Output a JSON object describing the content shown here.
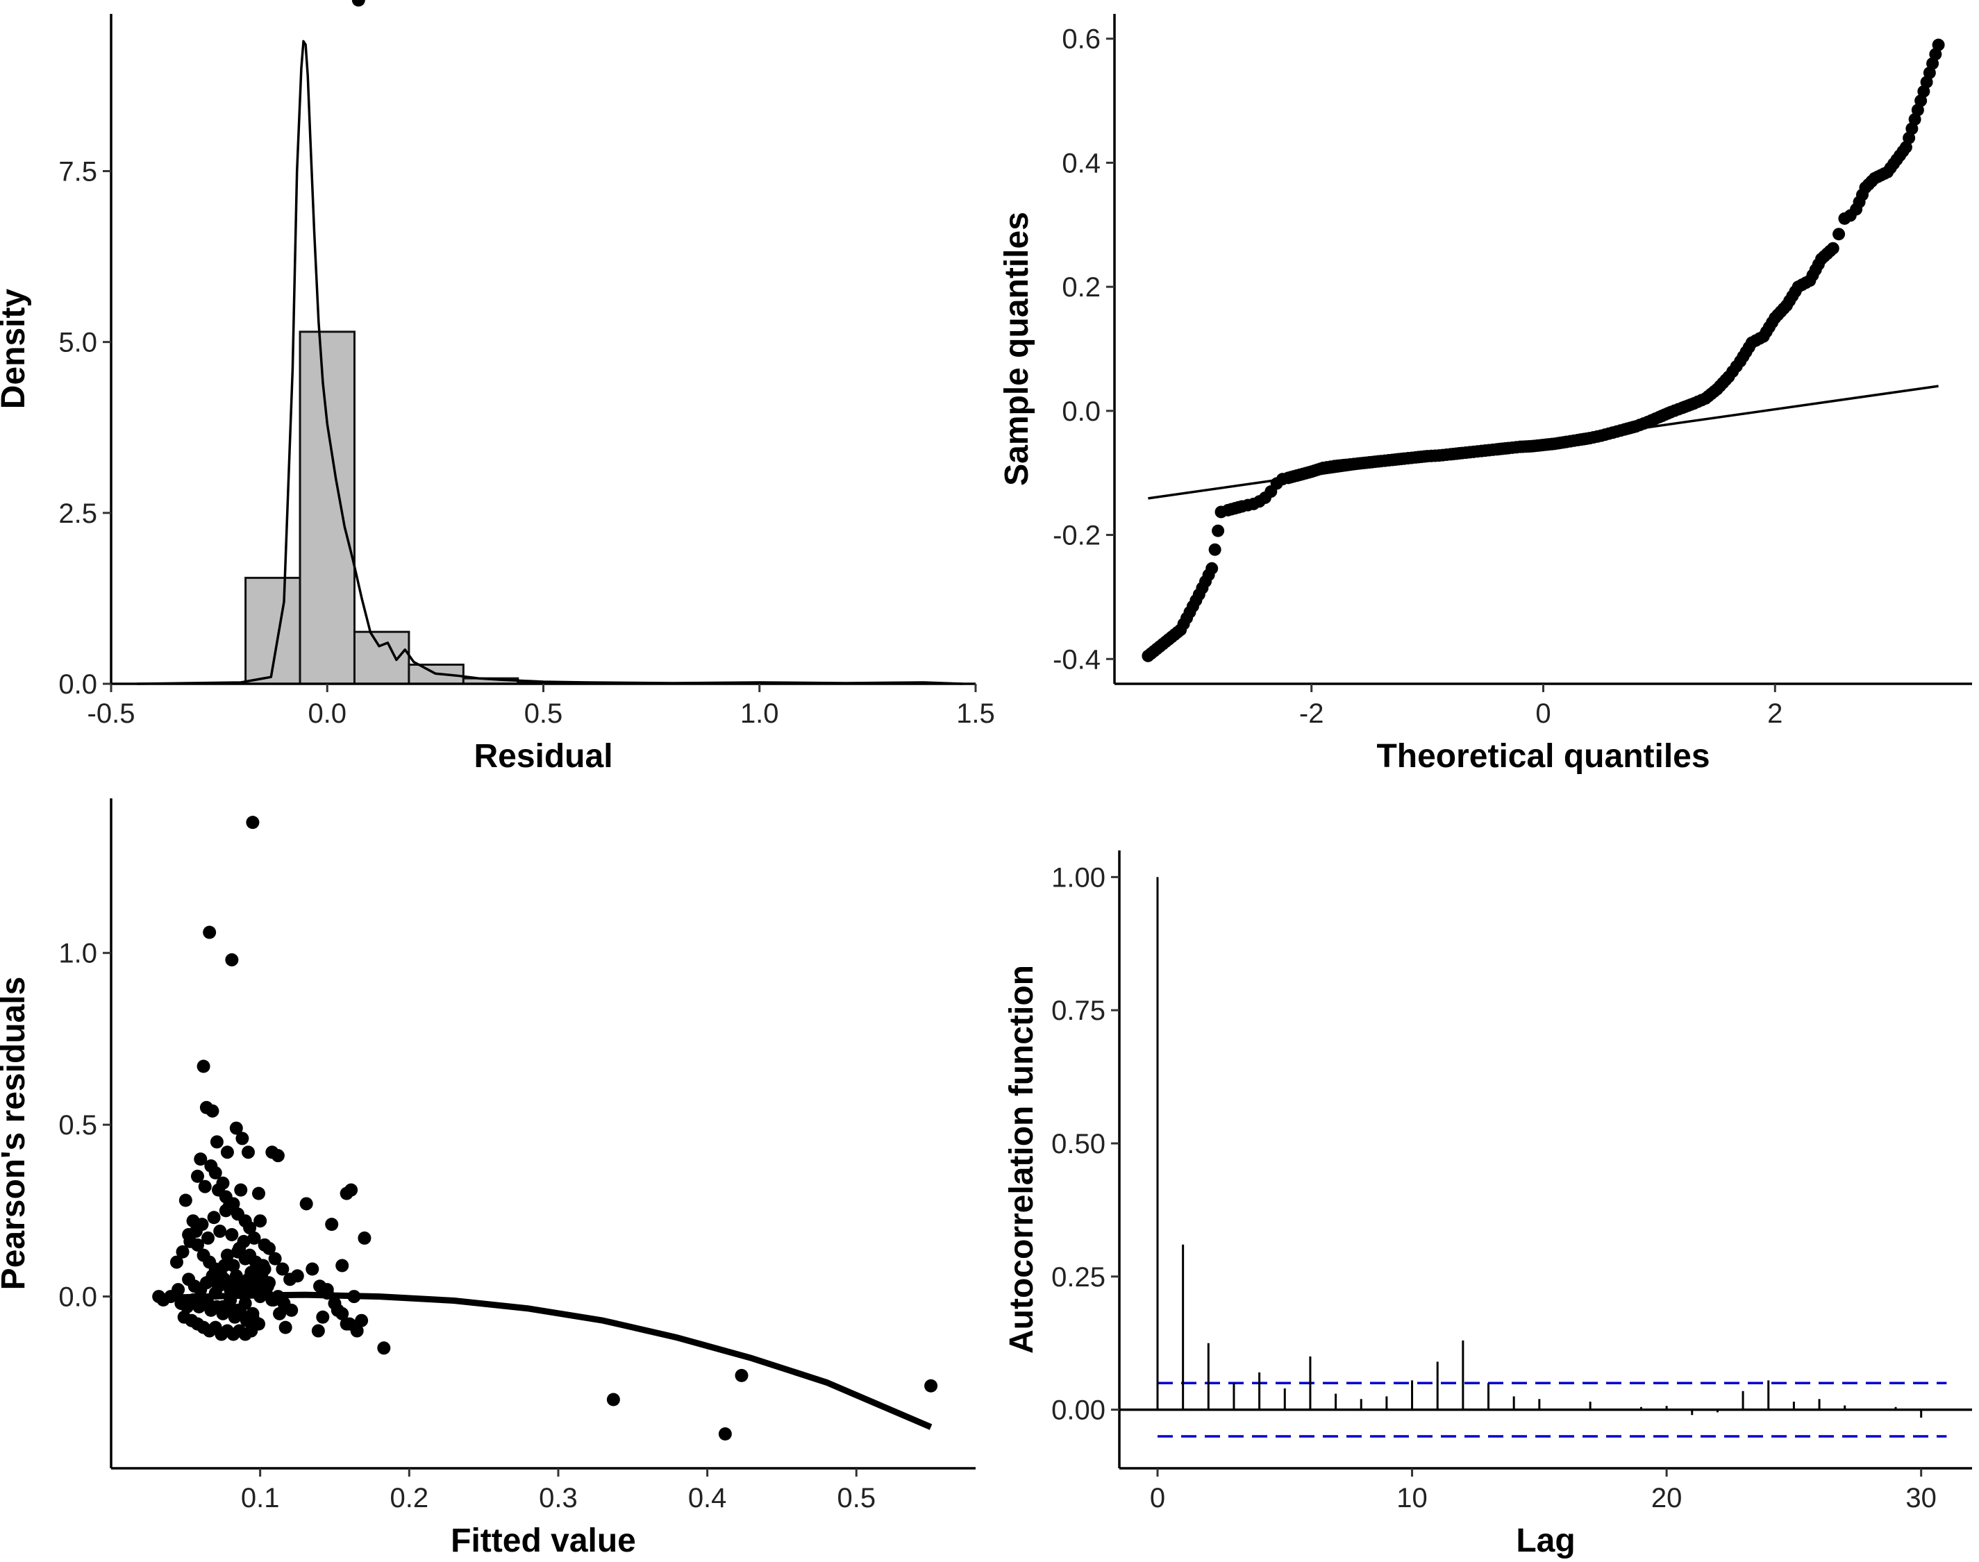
{
  "chart_data": [
    {
      "type": "bar",
      "subtype": "histogram-with-density",
      "xlabel": "Residual",
      "ylabel": "Density",
      "xlim": [
        -0.5,
        1.5
      ],
      "ylim": [
        0,
        9.8
      ],
      "x_ticks": [
        -0.5,
        0.0,
        0.5,
        1.0,
        1.5
      ],
      "x_tick_labels": [
        "-0.5",
        "0.0",
        "0.5",
        "1.0",
        "1.5"
      ],
      "y_ticks": [
        0,
        2.5,
        5.0,
        7.5
      ],
      "y_tick_labels": [
        "0.0",
        "2.5",
        "5.0",
        "7.5"
      ],
      "bar_fill": "#bebebe",
      "bins": [
        {
          "x0": -0.189,
          "x1": -0.063,
          "value": 1.55
        },
        {
          "x0": -0.063,
          "x1": 0.063,
          "value": 5.15
        },
        {
          "x0": 0.063,
          "x1": 0.189,
          "value": 0.76
        },
        {
          "x0": 0.189,
          "x1": 0.315,
          "value": 0.28
        },
        {
          "x0": 0.315,
          "x1": 0.441,
          "value": 0.08
        },
        {
          "x0": 0.441,
          "x1": 0.567,
          "value": 0.02
        }
      ],
      "density_x": [
        -0.44,
        -0.2,
        -0.13,
        -0.1,
        -0.08,
        -0.07,
        -0.06,
        -0.055,
        -0.05,
        -0.045,
        -0.04,
        -0.03,
        -0.02,
        -0.01,
        0.0,
        0.02,
        0.04,
        0.06,
        0.08,
        0.1,
        0.12,
        0.14,
        0.16,
        0.18,
        0.2,
        0.25,
        0.3,
        0.35,
        0.4,
        0.5,
        0.6,
        0.8,
        1.0,
        1.2,
        1.38,
        1.47
      ],
      "density_y": [
        0.0,
        0.02,
        0.1,
        1.2,
        4.6,
        7.5,
        9.0,
        9.4,
        9.35,
        8.9,
        8.1,
        6.6,
        5.3,
        4.4,
        3.8,
        3.0,
        2.3,
        1.8,
        1.25,
        0.75,
        0.55,
        0.6,
        0.35,
        0.5,
        0.32,
        0.15,
        0.12,
        0.08,
        0.06,
        0.03,
        0.02,
        0.01,
        0.02,
        0.01,
        0.02,
        0.0
      ]
    },
    {
      "type": "scatter",
      "subtype": "qq-plot",
      "xlabel": "Theoretical quantiles",
      "ylabel": "Sample quantiles",
      "xlim": [
        -3.7,
        3.7
      ],
      "ylim": [
        -0.44,
        0.64
      ],
      "x_ticks": [
        -2,
        0,
        2
      ],
      "x_tick_labels": [
        "-2",
        "0",
        "2"
      ],
      "y_ticks": [
        -0.4,
        -0.2,
        0.0,
        0.2,
        0.4,
        0.6
      ],
      "y_tick_labels": [
        "-0.4",
        "-0.2",
        "0.0",
        "0.2",
        "0.4",
        "0.6"
      ],
      "reference_line": {
        "x": [
          -3.41,
          3.41
        ],
        "y": [
          -0.141,
          0.04
        ]
      },
      "points_x": [
        -3.41,
        -3.13,
        -2.97,
        -2.86,
        -2.78,
        -2.72,
        -2.66,
        -2.6,
        -2.55,
        -2.5,
        -2.45,
        -2.4,
        -2.35,
        -2.3,
        -2.25,
        -2.2,
        -2.1,
        -2.0,
        -1.9,
        -1.8,
        -1.7,
        -1.6,
        -1.5,
        -1.4,
        -1.3,
        -1.2,
        -1.1,
        -1.0,
        -0.9,
        -0.8,
        -0.7,
        -0.6,
        -0.5,
        -0.4,
        -0.3,
        -0.2,
        -0.1,
        0.0,
        0.1,
        0.2,
        0.3,
        0.4,
        0.5,
        0.6,
        0.7,
        0.8,
        0.9,
        1.0,
        1.1,
        1.2,
        1.3,
        1.4,
        1.5,
        1.6,
        1.7,
        1.8,
        1.9,
        2.0,
        2.1,
        2.2,
        2.3,
        2.4,
        2.5,
        2.55,
        2.6,
        2.65,
        2.7,
        2.78,
        2.86,
        2.97,
        3.13,
        3.41
      ],
      "points_y": [
        -0.395,
        -0.353,
        -0.296,
        -0.254,
        -0.163,
        -0.16,
        -0.157,
        -0.154,
        -0.152,
        -0.15,
        -0.146,
        -0.14,
        -0.13,
        -0.117,
        -0.11,
        -0.108,
        -0.103,
        -0.098,
        -0.092,
        -0.089,
        -0.087,
        -0.085,
        -0.083,
        -0.081,
        -0.079,
        -0.077,
        -0.075,
        -0.073,
        -0.072,
        -0.07,
        -0.068,
        -0.066,
        -0.064,
        -0.062,
        -0.06,
        -0.058,
        -0.057,
        -0.055,
        -0.053,
        -0.05,
        -0.047,
        -0.044,
        -0.04,
        -0.035,
        -0.03,
        -0.025,
        -0.018,
        -0.01,
        -0.002,
        0.005,
        0.012,
        0.02,
        0.035,
        0.055,
        0.08,
        0.11,
        0.12,
        0.15,
        0.17,
        0.2,
        0.21,
        0.245,
        0.262,
        0.285,
        0.31,
        0.315,
        0.325,
        0.36,
        0.375,
        0.385,
        0.425,
        0.59
      ]
    },
    {
      "type": "scatter",
      "subtype": "residuals-vs-fitted",
      "xlabel": "Fitted value",
      "ylabel": "Pearson's residuals",
      "xlim": [
        0.0,
        0.58
      ],
      "ylim": [
        -0.5,
        1.45
      ],
      "x_ticks": [
        0.1,
        0.2,
        0.3,
        0.4,
        0.5
      ],
      "x_tick_labels": [
        "0.1",
        "0.2",
        "0.3",
        "0.4",
        "0.5"
      ],
      "y_ticks": [
        0.0,
        0.5,
        1.0
      ],
      "y_tick_labels": [
        "0.0",
        "0.5",
        "1.0"
      ],
      "smooth_x": [
        0.03,
        0.08,
        0.13,
        0.18,
        0.23,
        0.28,
        0.33,
        0.38,
        0.43,
        0.48,
        0.55
      ],
      "smooth_y": [
        -0.005,
        0.002,
        0.005,
        0.0,
        -0.012,
        -0.035,
        -0.07,
        -0.12,
        -0.18,
        -0.25,
        -0.38
      ],
      "points_x": [
        0.095,
        0.066,
        0.081,
        0.062,
        0.064,
        0.068,
        0.071,
        0.078,
        0.084,
        0.088,
        0.092,
        0.099,
        0.108,
        0.112,
        0.161,
        0.158,
        0.148,
        0.17,
        0.183,
        0.131,
        0.135,
        0.337,
        0.412,
        0.423,
        0.55,
        0.05,
        0.055,
        0.058,
        0.06,
        0.063,
        0.067,
        0.07,
        0.072,
        0.075,
        0.077,
        0.079,
        0.082,
        0.085,
        0.087,
        0.09,
        0.093,
        0.096,
        0.1,
        0.103,
        0.106,
        0.11,
        0.115,
        0.12,
        0.125,
        0.14,
        0.145,
        0.15,
        0.155,
        0.16,
        0.165,
        0.168,
        0.04,
        0.045,
        0.035,
        0.032,
        0.052,
        0.058,
        0.062,
        0.066,
        0.07,
        0.074,
        0.078,
        0.082,
        0.086,
        0.09,
        0.094,
        0.098,
        0.102,
        0.106,
        0.052,
        0.056,
        0.06,
        0.064,
        0.068,
        0.072,
        0.076,
        0.08,
        0.084,
        0.088,
        0.092,
        0.096,
        0.1,
        0.104,
        0.108,
        0.112,
        0.116,
        0.047,
        0.051,
        0.055,
        0.059,
        0.063,
        0.067,
        0.071,
        0.075,
        0.079,
        0.083,
        0.087,
        0.091,
        0.095,
        0.099,
        0.103,
        0.044,
        0.048,
        0.053,
        0.057,
        0.061,
        0.065,
        0.069,
        0.073,
        0.077,
        0.081,
        0.085,
        0.089,
        0.093,
        0.097,
        0.101,
        0.105,
        0.109,
        0.113,
        0.117,
        0.121,
        0.049,
        0.054,
        0.058,
        0.062,
        0.066,
        0.07,
        0.074,
        0.078,
        0.082,
        0.086,
        0.09,
        0.094,
        0.098,
        0.06,
        0.065,
        0.07,
        0.075,
        0.08,
        0.085,
        0.09,
        0.095,
        0.1,
        0.072,
        0.076,
        0.08,
        0.084,
        0.088,
        0.092,
        0.145,
        0.152,
        0.158,
        0.163,
        0.142,
        0.139,
        0.155,
        0.166
      ],
      "points_y": [
        1.38,
        1.06,
        0.98,
        0.67,
        0.55,
        0.54,
        0.45,
        0.42,
        0.49,
        0.46,
        0.42,
        0.3,
        0.42,
        0.41,
        0.31,
        0.3,
        0.21,
        0.17,
        -0.15,
        0.27,
        0.08,
        -0.3,
        -0.4,
        -0.23,
        -0.26,
        0.28,
        0.22,
        0.35,
        0.4,
        0.32,
        0.38,
        0.36,
        0.31,
        0.33,
        0.29,
        0.26,
        0.27,
        0.24,
        0.31,
        0.22,
        0.2,
        0.17,
        0.22,
        0.15,
        0.14,
        0.11,
        0.08,
        0.05,
        0.06,
        0.03,
        0.01,
        -0.02,
        -0.05,
        -0.08,
        -0.1,
        -0.07,
        0.0,
        0.02,
        -0.01,
        0.0,
        0.18,
        0.15,
        0.12,
        0.1,
        0.08,
        0.06,
        0.12,
        0.09,
        0.14,
        0.11,
        0.07,
        0.05,
        0.09,
        0.04,
        0.05,
        0.03,
        0.02,
        0.04,
        0.06,
        0.03,
        0.05,
        0.02,
        0.04,
        0.01,
        0.03,
        0.02,
        0.0,
        0.01,
        -0.01,
        0.0,
        -0.02,
        -0.02,
        -0.03,
        -0.01,
        -0.03,
        -0.02,
        -0.04,
        -0.03,
        -0.05,
        -0.04,
        -0.06,
        -0.05,
        -0.07,
        -0.06,
        -0.08,
        0.08,
        0.1,
        0.13,
        0.16,
        0.19,
        0.21,
        0.17,
        0.23,
        0.19,
        0.25,
        0.18,
        0.13,
        0.16,
        0.12,
        0.1,
        0.06,
        0.03,
        -0.01,
        -0.05,
        -0.09,
        -0.04,
        -0.06,
        -0.07,
        -0.08,
        -0.09,
        -0.1,
        -0.09,
        -0.11,
        -0.1,
        -0.11,
        -0.1,
        -0.11,
        -0.1,
        0.02,
        0.0,
        -0.02,
        0.01,
        -0.03,
        -0.01,
        -0.04,
        -0.02,
        -0.05,
        0.07,
        0.05,
        0.09,
        0.03,
        0.06,
        0.01,
        0.05,
        0.02,
        -0.04,
        -0.08,
        0.0,
        -0.06,
        -0.1,
        0.09
      ]
    },
    {
      "type": "bar",
      "subtype": "acf",
      "xlabel": "Lag",
      "ylabel": "Autocorrelation function",
      "xlim": [
        -1.5,
        32
      ],
      "ylim": [
        -0.11,
        1.05
      ],
      "x_ticks": [
        0,
        10,
        20,
        30
      ],
      "x_tick_labels": [
        "0",
        "10",
        "20",
        "30"
      ],
      "y_ticks": [
        0.0,
        0.25,
        0.5,
        0.75,
        1.0
      ],
      "y_tick_labels": [
        "0.00",
        "0.25",
        "0.50",
        "0.75",
        "1.00"
      ],
      "confidence_bound": 0.05,
      "confidence_color": "#0000cc",
      "lags": [
        0,
        1,
        2,
        3,
        4,
        5,
        6,
        7,
        8,
        9,
        10,
        11,
        12,
        13,
        14,
        15,
        16,
        17,
        18,
        19,
        20,
        21,
        22,
        23,
        24,
        25,
        26,
        27,
        28,
        29,
        30
      ],
      "values": [
        1.0,
        0.31,
        0.125,
        0.05,
        0.07,
        0.04,
        0.1,
        0.03,
        0.02,
        0.025,
        0.055,
        0.09,
        0.13,
        0.05,
        0.025,
        0.02,
        0.0,
        0.015,
        0.0,
        0.005,
        0.007,
        -0.01,
        -0.005,
        0.035,
        0.055,
        0.015,
        0.02,
        0.008,
        0.0,
        0.005,
        -0.015
      ]
    }
  ]
}
